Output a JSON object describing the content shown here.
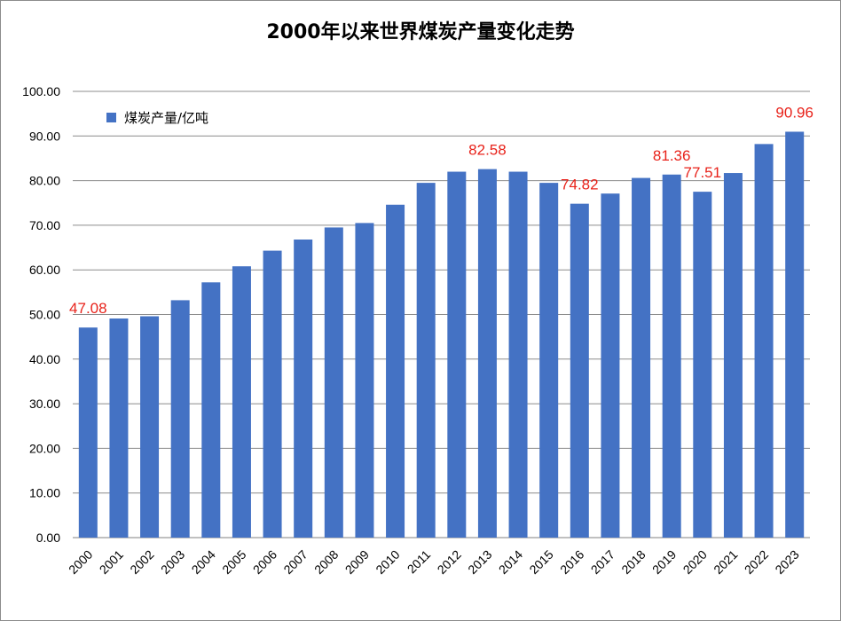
{
  "chart_data": {
    "type": "bar",
    "title": "2000年以来世界煤炭产量变化走势",
    "xlabel": "",
    "ylabel": "",
    "ylim": [
      0,
      100
    ],
    "ytick_labels": [
      "0.00",
      "10.00",
      "20.00",
      "30.00",
      "40.00",
      "50.00",
      "60.00",
      "70.00",
      "80.00",
      "90.00",
      "100.00"
    ],
    "grid": true,
    "legend_position": "top-left",
    "categories": [
      "2000",
      "2001",
      "2002",
      "2003",
      "2004",
      "2005",
      "2006",
      "2007",
      "2008",
      "2009",
      "2010",
      "2011",
      "2012",
      "2013",
      "2014",
      "2015",
      "2016",
      "2017",
      "2018",
      "2019",
      "2020",
      "2021",
      "2022",
      "2023"
    ],
    "series": [
      {
        "name": "煤炭产量/亿吨",
        "color": "#4472c4",
        "values": [
          47.08,
          49.1,
          49.6,
          53.2,
          57.2,
          60.8,
          64.3,
          66.8,
          69.5,
          70.5,
          74.6,
          79.5,
          82.0,
          82.58,
          82.0,
          79.5,
          74.82,
          77.1,
          80.6,
          81.36,
          77.51,
          81.7,
          88.2,
          90.96
        ]
      }
    ],
    "data_labels": [
      {
        "index": 0,
        "text": "47.08"
      },
      {
        "index": 13,
        "text": "82.58"
      },
      {
        "index": 16,
        "text": "74.82"
      },
      {
        "index": 19,
        "text": "81.36"
      },
      {
        "index": 20,
        "text": "77.51"
      },
      {
        "index": 23,
        "text": "90.96"
      }
    ]
  }
}
